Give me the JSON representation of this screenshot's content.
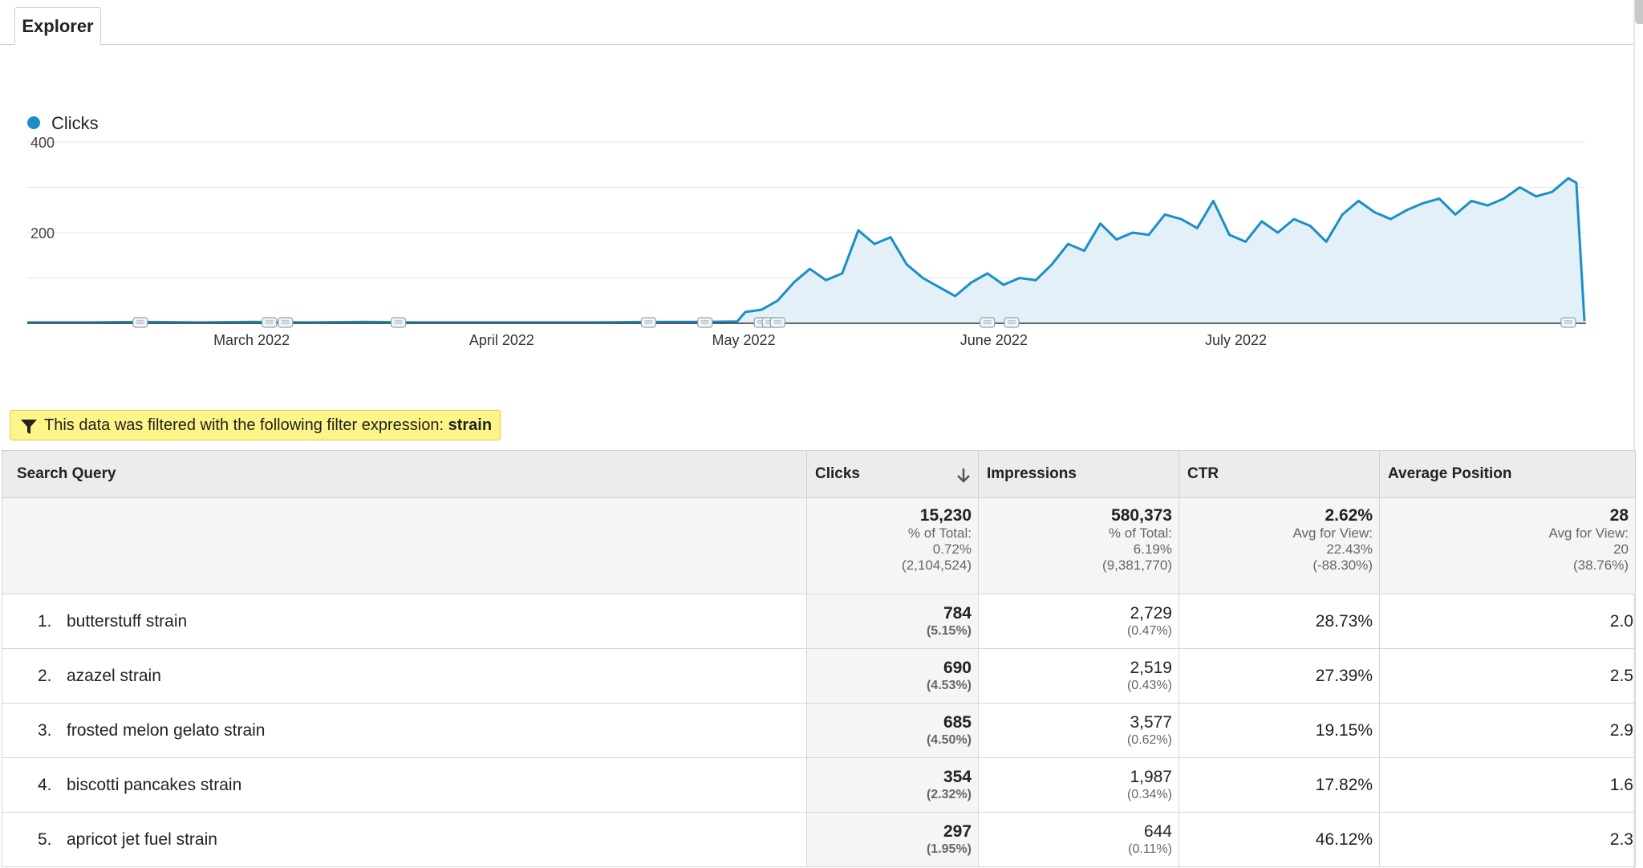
{
  "tabs": [
    {
      "label": "Explorer",
      "active": true
    }
  ],
  "legend": {
    "label": "Clicks",
    "color": "#1a8fc7"
  },
  "chart_data": {
    "type": "area",
    "series": [
      {
        "name": "Clicks",
        "color": "#1a8fc7"
      }
    ],
    "y_ticks": [
      "400",
      "200"
    ],
    "ylim": [
      0,
      400
    ],
    "x_labels": [
      "March 2022",
      "April 2022",
      "May 2022",
      "June 2022",
      "July 2022"
    ],
    "x": [
      "2022-02-01",
      "2022-02-08",
      "2022-02-15",
      "2022-02-22",
      "2022-03-01",
      "2022-03-08",
      "2022-03-15",
      "2022-03-22",
      "2022-03-29",
      "2022-04-05",
      "2022-04-12",
      "2022-04-19",
      "2022-04-26",
      "2022-04-30",
      "2022-05-01",
      "2022-05-03",
      "2022-05-05",
      "2022-05-07",
      "2022-05-09",
      "2022-05-11",
      "2022-05-13",
      "2022-05-15",
      "2022-05-17",
      "2022-05-19",
      "2022-05-21",
      "2022-05-23",
      "2022-05-25",
      "2022-05-27",
      "2022-05-29",
      "2022-05-31",
      "2022-06-02",
      "2022-06-04",
      "2022-06-06",
      "2022-06-08",
      "2022-06-10",
      "2022-06-12",
      "2022-06-14",
      "2022-06-16",
      "2022-06-18",
      "2022-06-20",
      "2022-06-22",
      "2022-06-24",
      "2022-06-26",
      "2022-06-28",
      "2022-06-30",
      "2022-07-02",
      "2022-07-04",
      "2022-07-06",
      "2022-07-08",
      "2022-07-10",
      "2022-07-12",
      "2022-07-14",
      "2022-07-16",
      "2022-07-18",
      "2022-07-20",
      "2022-07-22",
      "2022-07-24",
      "2022-07-26",
      "2022-07-28",
      "2022-07-30",
      "2022-08-01",
      "2022-08-03",
      "2022-08-05",
      "2022-08-07",
      "2022-08-09",
      "2022-08-11",
      "2022-08-12",
      "2022-08-13"
    ],
    "values": [
      2,
      2,
      3,
      2,
      3,
      2,
      3,
      2,
      2,
      2,
      2,
      3,
      3,
      4,
      25,
      30,
      50,
      90,
      120,
      95,
      110,
      205,
      175,
      190,
      130,
      100,
      80,
      60,
      90,
      110,
      85,
      100,
      95,
      130,
      175,
      160,
      220,
      185,
      200,
      195,
      240,
      230,
      210,
      270,
      195,
      180,
      225,
      200,
      230,
      215,
      180,
      240,
      270,
      245,
      230,
      250,
      265,
      275,
      240,
      270,
      260,
      275,
      300,
      280,
      290,
      320,
      310,
      5
    ],
    "annotation_dates": [
      "2022-02-15",
      "2022-03-03",
      "2022-03-05",
      "2022-03-19",
      "2022-04-19",
      "2022-04-26",
      "2022-05-03",
      "2022-05-04",
      "2022-05-05",
      "2022-05-31",
      "2022-06-03",
      "2022-08-11"
    ]
  },
  "filter": {
    "text": "This data was filtered with the following filter expression: ",
    "expression": "strain"
  },
  "table": {
    "headers": [
      "Search Query",
      "Clicks",
      "Impressions",
      "CTR",
      "Average Position"
    ],
    "totals": {
      "clicks": {
        "main": "15,230",
        "l1": "% of Total:",
        "l2": "0.72%",
        "l3": "(2,104,524)"
      },
      "impressions": {
        "main": "580,373",
        "l1": "% of Total:",
        "l2": "6.19%",
        "l3": "(9,381,770)"
      },
      "ctr": {
        "main": "2.62%",
        "l1": "Avg for View:",
        "l2": "22.43%",
        "l3": "(-88.30%)"
      },
      "position": {
        "main": "28",
        "l1": "Avg for View:",
        "l2": "20",
        "l3": "(38.76%)"
      }
    },
    "rows": [
      {
        "num": "1.",
        "query": "butterstuff strain",
        "clicks": "784",
        "clicks_pct": "(5.15%)",
        "impressions": "2,729",
        "impressions_pct": "(0.47%)",
        "ctr": "28.73%",
        "position": "2.0"
      },
      {
        "num": "2.",
        "query": "azazel strain",
        "clicks": "690",
        "clicks_pct": "(4.53%)",
        "impressions": "2,519",
        "impressions_pct": "(0.43%)",
        "ctr": "27.39%",
        "position": "2.5"
      },
      {
        "num": "3.",
        "query": "frosted melon gelato strain",
        "clicks": "685",
        "clicks_pct": "(4.50%)",
        "impressions": "3,577",
        "impressions_pct": "(0.62%)",
        "ctr": "19.15%",
        "position": "2.9"
      },
      {
        "num": "4.",
        "query": "biscotti pancakes strain",
        "clicks": "354",
        "clicks_pct": "(2.32%)",
        "impressions": "1,987",
        "impressions_pct": "(0.34%)",
        "ctr": "17.82%",
        "position": "1.6"
      },
      {
        "num": "5.",
        "query": "apricot jet fuel strain",
        "clicks": "297",
        "clicks_pct": "(1.95%)",
        "impressions": "644",
        "impressions_pct": "(0.11%)",
        "ctr": "46.12%",
        "position": "2.3"
      }
    ]
  }
}
